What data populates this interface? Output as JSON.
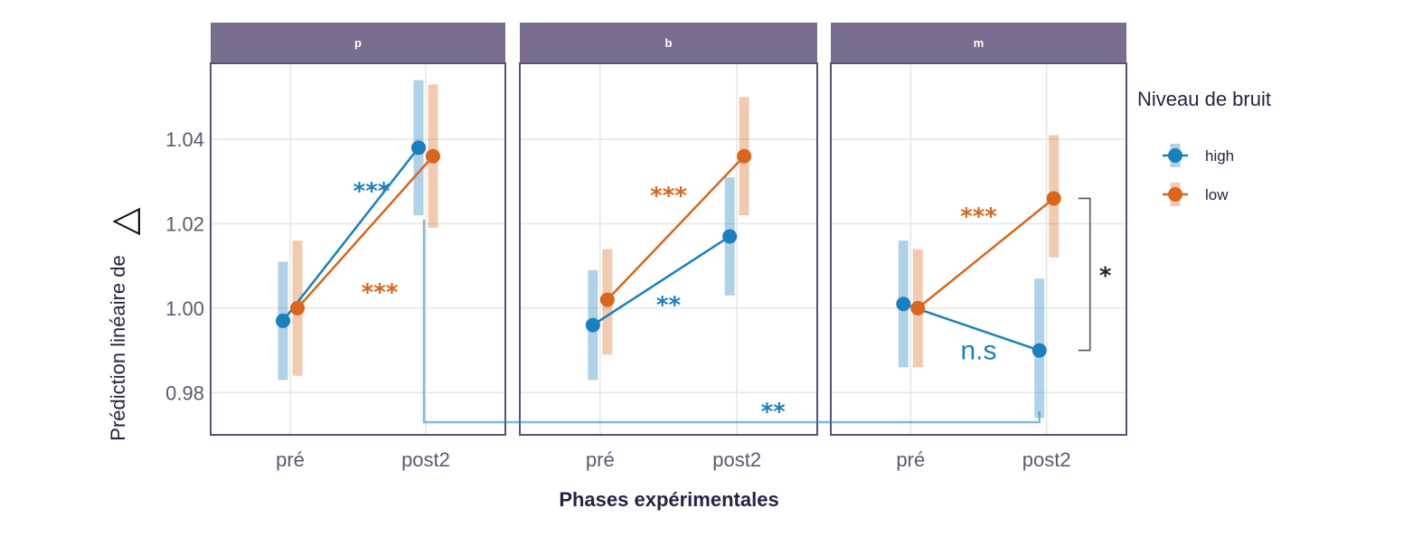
{
  "chart_data": {
    "type": "line",
    "xlabel": "Phases expérimentales",
    "ylabel": "Prédiction linéaire de",
    "ylabel_symbol": "△",
    "categories": [
      "pré",
      "post2"
    ],
    "yticks": [
      "0.98",
      "1.00",
      "1.02",
      "1.04"
    ],
    "ylim": [
      0.97,
      1.058
    ],
    "legend": {
      "title": "Niveau de bruit",
      "position": "right"
    },
    "colors": {
      "high": "#1a7fbf",
      "low": "#d9661a",
      "strip_bg": "#7a6e8e",
      "border": "#5b5078",
      "grid": "#e6e6e6",
      "bracket": "#555555",
      "star": "#222222"
    },
    "panels": [
      {
        "strip": "p",
        "series": [
          {
            "name": "high",
            "values": [
              0.997,
              1.038
            ],
            "lower": [
              0.983,
              1.022
            ],
            "upper": [
              1.011,
              1.054
            ]
          },
          {
            "name": "low",
            "values": [
              1.0,
              1.036
            ],
            "lower": [
              0.984,
              1.019
            ],
            "upper": [
              1.016,
              1.053
            ]
          }
        ],
        "annotations": [
          {
            "text": "***",
            "series": "high",
            "x": 0.6,
            "y": 1.028
          },
          {
            "text": "***",
            "series": "low",
            "x": 0.66,
            "y": 1.004
          }
        ]
      },
      {
        "strip": "b",
        "series": [
          {
            "name": "high",
            "values": [
              0.996,
              1.017
            ],
            "lower": [
              0.983,
              1.003
            ],
            "upper": [
              1.009,
              1.031
            ]
          },
          {
            "name": "low",
            "values": [
              1.002,
              1.036
            ],
            "lower": [
              0.989,
              1.022
            ],
            "upper": [
              1.014,
              1.05
            ]
          }
        ],
        "annotations": [
          {
            "text": "***",
            "series": "low",
            "x": 0.5,
            "y": 1.027
          },
          {
            "text": "**",
            "series": "high",
            "x": 0.5,
            "y": 1.001
          }
        ]
      },
      {
        "strip": "m",
        "series": [
          {
            "name": "high",
            "values": [
              1.001,
              0.99
            ],
            "lower": [
              0.986,
              0.974
            ],
            "upper": [
              1.016,
              1.007
            ]
          },
          {
            "name": "low",
            "values": [
              1.0,
              1.026
            ],
            "lower": [
              0.986,
              1.012
            ],
            "upper": [
              1.014,
              1.041
            ]
          }
        ],
        "annotations": [
          {
            "text": "***",
            "series": "low",
            "x": 0.5,
            "y": 1.022
          },
          {
            "text": "n.s",
            "series": "high",
            "x": 0.5,
            "y": 0.99,
            "style": "ns"
          }
        ],
        "bracket": {
          "from": 0.99,
          "to": 1.026,
          "label": "*"
        }
      }
    ],
    "cross_panel_comparison": {
      "from_panel": 0,
      "to_panel": 2,
      "category": "post2",
      "series": "high",
      "label": "**"
    }
  }
}
